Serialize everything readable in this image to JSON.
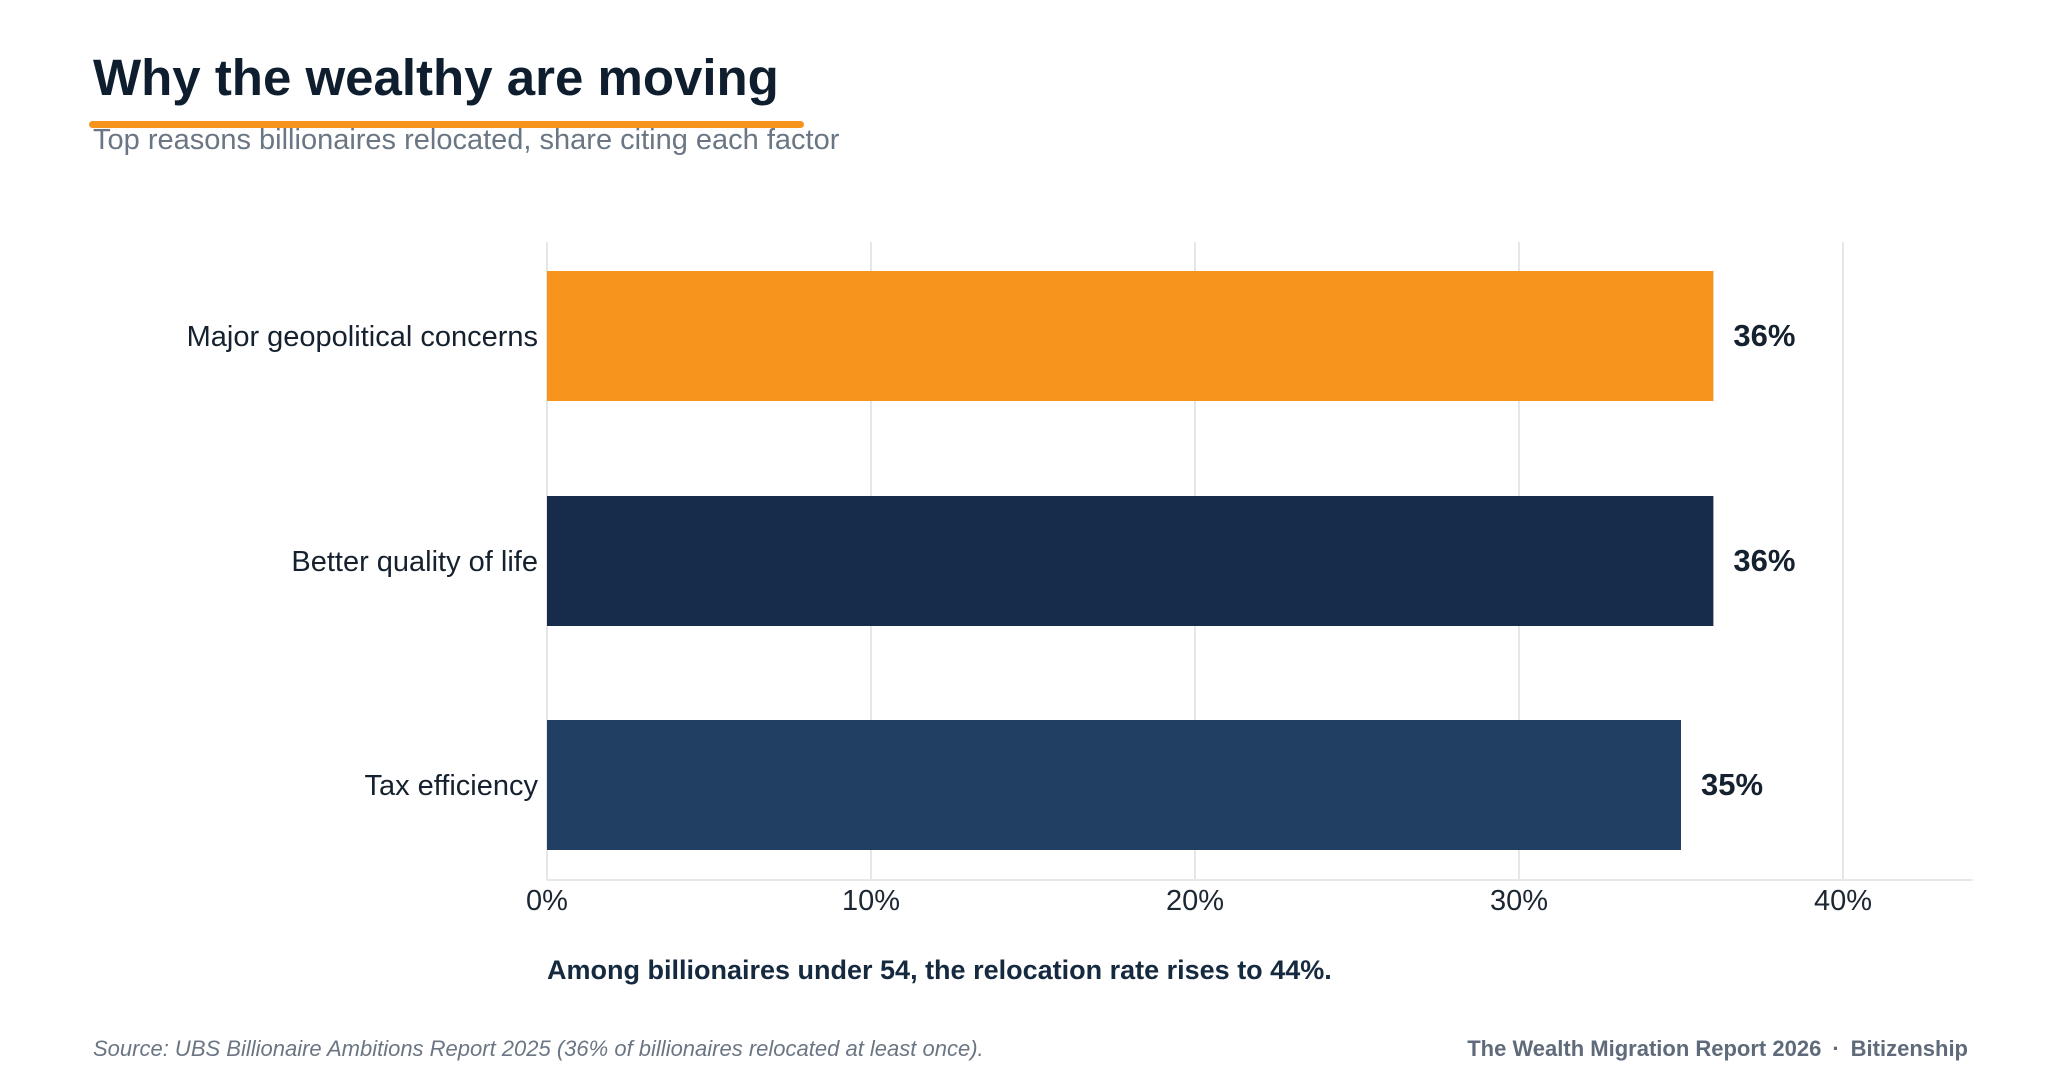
{
  "chart_data": {
    "type": "bar",
    "orientation": "horizontal",
    "title": "Why the wealthy are moving",
    "subtitle": "Top reasons billionaires relocated, share citing each factor",
    "categories": [
      "Major geopolitical concerns",
      "Better quality of life",
      "Tax efficiency"
    ],
    "values": [
      36,
      36,
      35
    ],
    "value_labels": [
      "36%",
      "36%",
      "35%"
    ],
    "bar_colors": [
      "#f7941d",
      "#172c4a",
      "#203f63"
    ],
    "xlim": [
      0,
      44
    ],
    "xticks": [
      0,
      10,
      20,
      30,
      40
    ],
    "xtick_labels": [
      "0%",
      "10%",
      "20%",
      "30%",
      "40%"
    ],
    "grid": "vertical",
    "legend": "none",
    "annotation": "Among billionaires under 54, the relocation rate rises to 44%."
  },
  "footer": {
    "source": "Source: UBS Billionaire Ambitions Report 2025 (36% of billionaires relocated at least once).",
    "report": "The Wealth Migration Report 2026",
    "separator": "·",
    "brand": "Bitizenship"
  },
  "colors": {
    "accent": "#f7941d",
    "title": "#0f1e2e",
    "muted": "#6b7684",
    "grid": "#e5e7eb"
  }
}
